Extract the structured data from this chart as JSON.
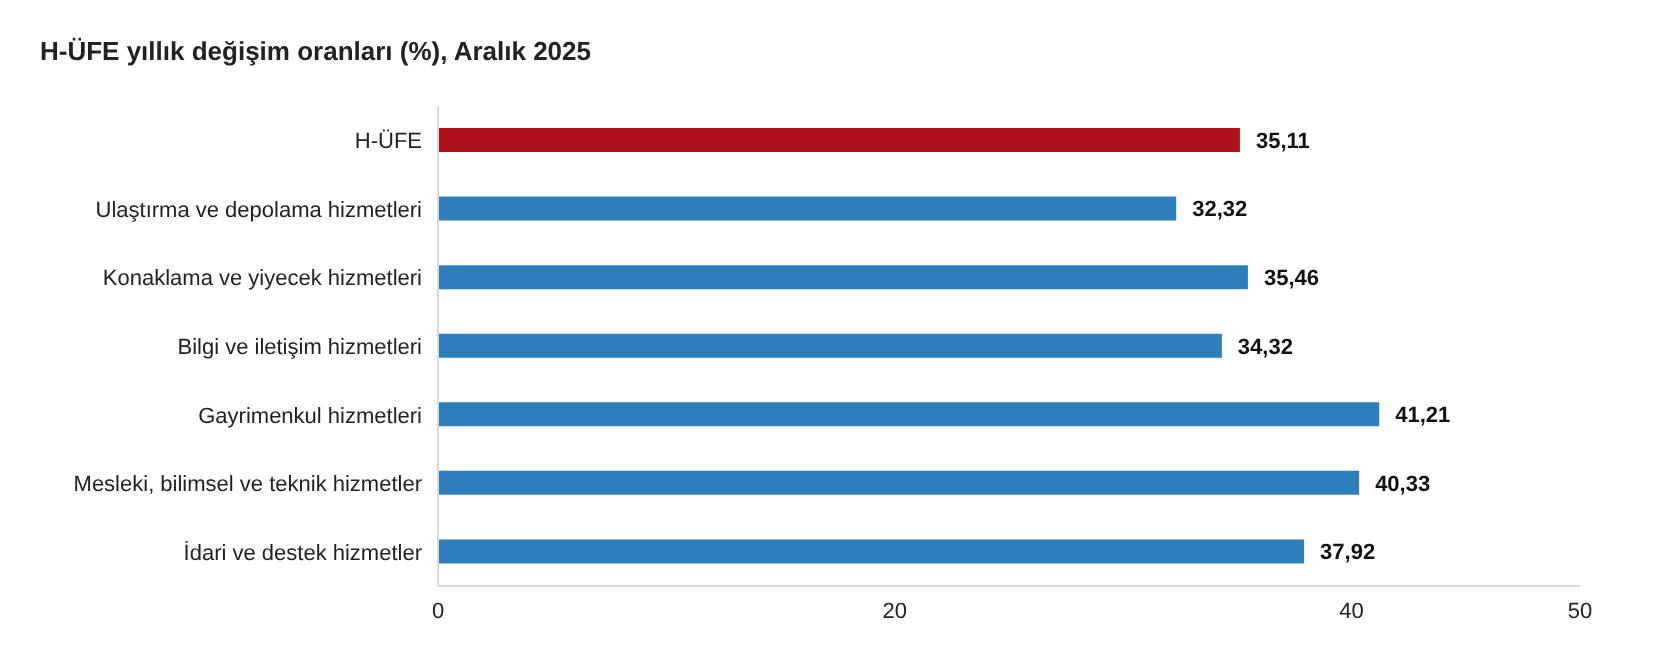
{
  "chart_data": {
    "type": "bar",
    "orientation": "horizontal",
    "title": "H-ÜFE yıllık değişim oranları (%), Aralık 2025",
    "categories": [
      "H-ÜFE",
      "Ulaştırma ve depolama hizmetleri",
      "Konaklama ve yiyecek hizmetleri",
      "Bilgi ve iletişim hizmetleri",
      "Gayrimenkul hizmetleri",
      "Mesleki, bilimsel ve teknik hizmetler",
      "İdari ve destek hizmetler"
    ],
    "values": [
      35.11,
      32.32,
      35.46,
      34.32,
      41.21,
      40.33,
      37.92
    ],
    "colors": [
      "#b0121b",
      "#2e7ebc",
      "#2e7ebc",
      "#2e7ebc",
      "#2e7ebc",
      "#2e7ebc",
      "#2e7ebc"
    ],
    "value_labels": [
      "35,11",
      "32,32",
      "35,46",
      "34,32",
      "41,21",
      "40,33",
      "37,92"
    ],
    "xlim": [
      0,
      50
    ],
    "xticks": [
      0,
      20,
      40,
      50
    ],
    "grid": false
  }
}
